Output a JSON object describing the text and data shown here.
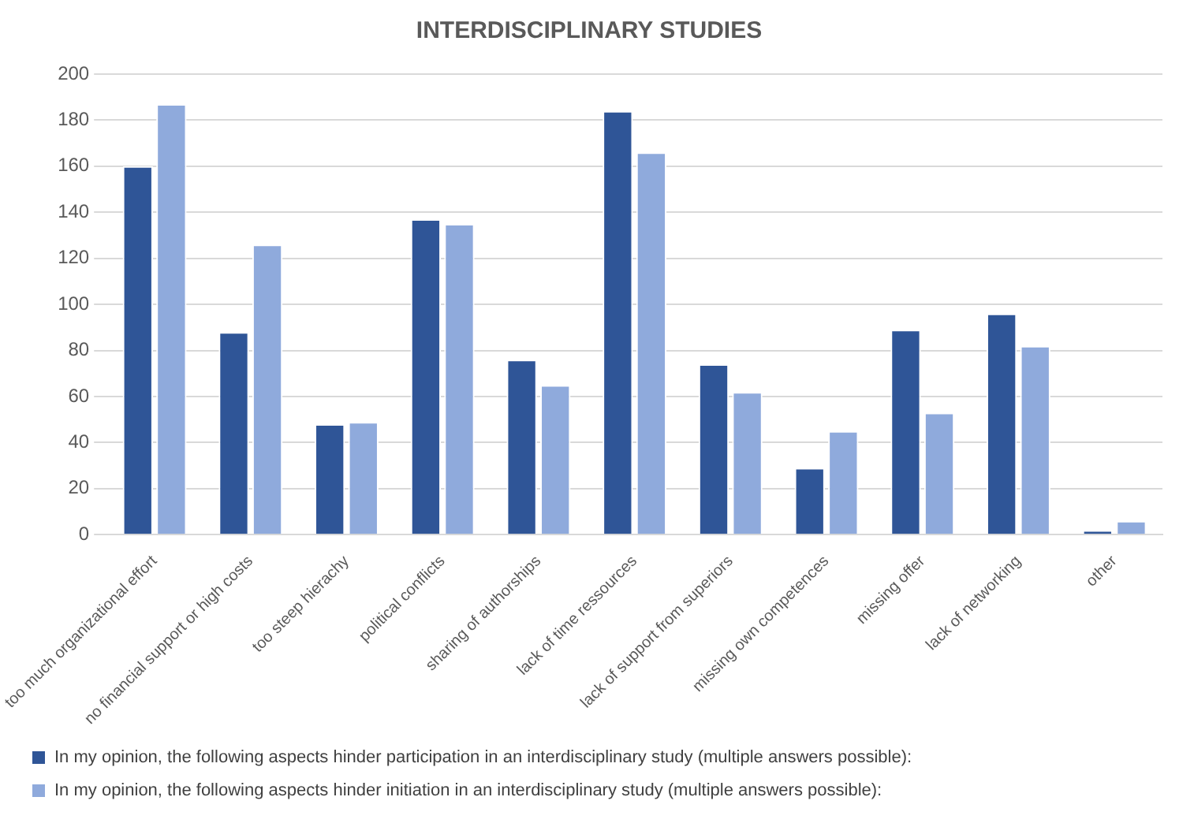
{
  "chart_data": {
    "type": "bar",
    "title": "INTERDISCIPLINARY STUDIES",
    "categories": [
      "too much organizational effort",
      "no financial support or high costs",
      "too steep hierachy",
      "political conflicts",
      "sharing of authorships",
      "lack of time ressources",
      "lack of support from superiors",
      "missing own competences",
      "missing offer",
      "lack of networking",
      "other"
    ],
    "series": [
      {
        "name": "In my opinion, the following aspects hinder participation in an interdisciplinary study (multiple answers possible):",
        "color": "#2f5597",
        "values": [
          160,
          88,
          48,
          137,
          76,
          184,
          74,
          29,
          89,
          96,
          2
        ]
      },
      {
        "name": "In my opinion, the following aspects hinder initiation in an interdisciplinary study (multiple answers possible):",
        "color": "#8faadc",
        "values": [
          187,
          126,
          49,
          135,
          65,
          166,
          62,
          45,
          53,
          82,
          6
        ]
      }
    ],
    "ylim": [
      0,
      200
    ],
    "yticks": [
      0,
      20,
      40,
      60,
      80,
      100,
      120,
      140,
      160,
      180,
      200
    ],
    "grid": "y",
    "legend": "bottom"
  }
}
